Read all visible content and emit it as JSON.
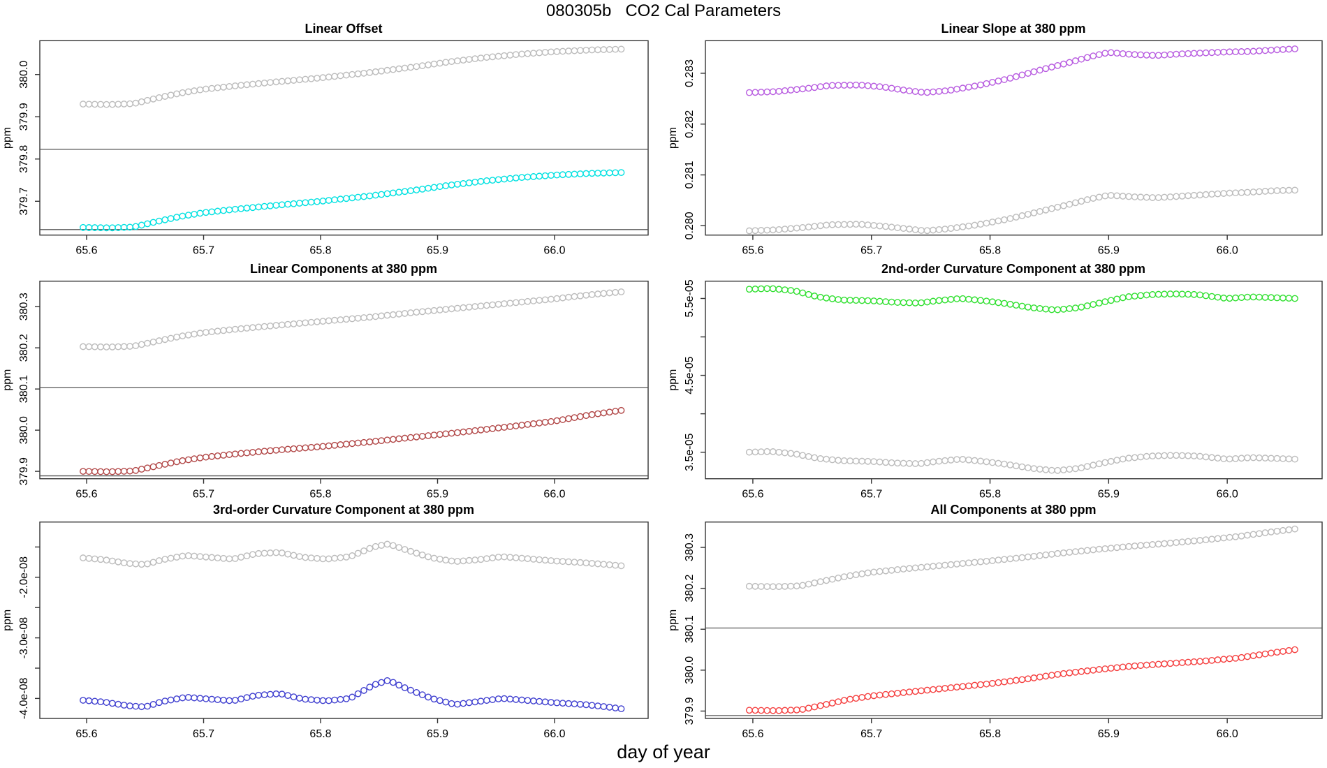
{
  "figure": {
    "title": "080305b   CO2 Cal Parameters",
    "xlabel": "day of year"
  },
  "chart_data": [
    {
      "type": "scatter",
      "title": "Linear Offset",
      "ylabel": "ppm",
      "xlabel": "",
      "xlim": [
        65.56,
        66.08
      ],
      "ylim": [
        379.62,
        380.08
      ],
      "grid": false,
      "legend": "none",
      "xticks": {
        "values": [
          65.6,
          65.7,
          65.8,
          65.9,
          66.0
        ],
        "labels": [
          "65.6",
          "65.7",
          "65.8",
          "65.9",
          "66.0"
        ]
      },
      "yticks": {
        "values": [
          379.7,
          379.8,
          379.9,
          380.0
        ],
        "labels": [
          "379.7",
          "379.8",
          "379.9",
          "380.0"
        ]
      },
      "hlines": [
        379.823,
        379.633
      ],
      "points_x_start": 65.597,
      "points_x_step": 0.005,
      "points_n": 93,
      "series": [
        {
          "name": "offset-upper-gray",
          "color": "#bcbcbc",
          "marker": "open-circle",
          "x": [
            65.597,
            65.62,
            65.64,
            65.66,
            65.68,
            65.7,
            65.73,
            65.76,
            65.8,
            65.84,
            65.88,
            65.91,
            65.94,
            65.97,
            66.0,
            66.03,
            66.057
          ],
          "y": [
            379.93,
            379.929,
            379.931,
            379.944,
            379.956,
            379.965,
            379.974,
            379.982,
            379.992,
            380.004,
            380.018,
            380.03,
            380.04,
            380.048,
            380.054,
            380.058,
            380.06
          ]
        },
        {
          "name": "offset-lower-cyan",
          "color": "#00e1e1",
          "marker": "open-circle",
          "x": [
            65.597,
            65.62,
            65.64,
            65.66,
            65.68,
            65.7,
            65.73,
            65.76,
            65.8,
            65.84,
            65.88,
            65.91,
            65.94,
            65.97,
            66.0,
            66.03,
            66.057
          ],
          "y": [
            379.638,
            379.637,
            379.639,
            379.652,
            379.664,
            379.673,
            379.682,
            379.69,
            379.7,
            379.712,
            379.726,
            379.738,
            379.748,
            379.756,
            379.762,
            379.766,
            379.768
          ]
        }
      ]
    },
    {
      "type": "scatter",
      "title": "Linear Slope at 380 ppm",
      "ylabel": "ppm",
      "xlabel": "",
      "xlim": [
        65.56,
        66.08
      ],
      "ylim": [
        0.279816,
        0.283641
      ],
      "grid": false,
      "legend": "none",
      "xticks": {
        "values": [
          65.6,
          65.7,
          65.8,
          65.9,
          66.0
        ],
        "labels": [
          "65.6",
          "65.7",
          "65.8",
          "65.9",
          "66.0"
        ]
      },
      "yticks": {
        "values": [
          0.28,
          0.281,
          0.282,
          0.283
        ],
        "labels": [
          "0.280",
          "0.281",
          "0.282",
          "0.283"
        ]
      },
      "hlines": [],
      "points_x_start": 65.597,
      "points_x_step": 0.005,
      "points_n": 93,
      "series": [
        {
          "name": "slope-upper-violet",
          "color": "#b85ce0",
          "marker": "open-circle",
          "x": [
            65.597,
            65.62,
            65.645,
            65.665,
            65.69,
            65.71,
            65.73,
            65.745,
            65.765,
            65.79,
            65.815,
            65.84,
            65.865,
            65.885,
            65.9,
            65.92,
            65.94,
            65.96,
            65.98,
            66.0,
            66.02,
            66.04,
            66.057
          ],
          "y": [
            0.28262,
            0.28264,
            0.2827,
            0.28276,
            0.28277,
            0.28273,
            0.28266,
            0.28262,
            0.28266,
            0.28276,
            0.28289,
            0.28305,
            0.2832,
            0.28333,
            0.28341,
            0.28337,
            0.28335,
            0.28338,
            0.2834,
            0.28342,
            0.28343,
            0.28346,
            0.28348
          ]
        },
        {
          "name": "slope-lower-gray",
          "color": "#bcbcbc",
          "marker": "open-circle",
          "x": [
            65.597,
            65.62,
            65.645,
            65.665,
            65.69,
            65.71,
            65.73,
            65.745,
            65.765,
            65.79,
            65.815,
            65.84,
            65.865,
            65.885,
            65.9,
            65.92,
            65.94,
            65.96,
            65.98,
            66.0,
            66.02,
            66.04,
            66.057
          ],
          "y": [
            0.2799,
            0.27992,
            0.27997,
            0.28002,
            0.28003,
            0.27999,
            0.27994,
            0.2799,
            0.27994,
            0.28002,
            0.28013,
            0.28027,
            0.28041,
            0.28053,
            0.2806,
            0.28057,
            0.28055,
            0.28058,
            0.28061,
            0.28064,
            0.28066,
            0.28069,
            0.2807
          ]
        }
      ]
    },
    {
      "type": "scatter",
      "title": "Linear Components at 380 ppm",
      "ylabel": "ppm",
      "xlabel": "",
      "xlim": [
        65.56,
        66.08
      ],
      "ylim": [
        379.882,
        380.362
      ],
      "grid": false,
      "legend": "none",
      "xticks": {
        "values": [
          65.6,
          65.7,
          65.8,
          65.9,
          66.0
        ],
        "labels": [
          "65.6",
          "65.7",
          "65.8",
          "65.9",
          "66.0"
        ]
      },
      "yticks": {
        "values": [
          379.9,
          380.0,
          380.1,
          380.2,
          380.3
        ],
        "labels": [
          "379.9",
          "380.0",
          "380.1",
          "380.2",
          "380.3"
        ]
      },
      "hlines": [
        380.103,
        379.889
      ],
      "points_x_start": 65.597,
      "points_x_step": 0.005,
      "points_n": 93,
      "series": [
        {
          "name": "components-upper-gray",
          "color": "#bcbcbc",
          "marker": "open-circle",
          "x": [
            65.597,
            65.62,
            65.64,
            65.66,
            65.68,
            65.7,
            65.73,
            65.76,
            65.8,
            65.84,
            65.88,
            65.92,
            65.96,
            66.0,
            66.03,
            66.057
          ],
          "y": [
            380.203,
            380.202,
            380.204,
            380.216,
            380.228,
            380.237,
            380.246,
            380.254,
            380.264,
            380.274,
            380.286,
            380.297,
            380.308,
            380.319,
            380.329,
            380.336
          ]
        },
        {
          "name": "components-lower-darkred",
          "color": "#b24848",
          "marker": "open-circle",
          "x": [
            65.597,
            65.62,
            65.64,
            65.66,
            65.68,
            65.7,
            65.73,
            65.76,
            65.8,
            65.84,
            65.88,
            65.92,
            65.96,
            66.0,
            66.03,
            66.057
          ],
          "y": [
            379.9,
            379.899,
            379.901,
            379.913,
            379.925,
            379.934,
            379.943,
            379.951,
            379.96,
            379.971,
            379.983,
            379.995,
            380.008,
            380.022,
            380.037,
            380.048
          ]
        }
      ]
    },
    {
      "type": "scatter",
      "title": "2nd-order Curvature Component at 380 ppm",
      "ylabel": "ppm",
      "xlabel": "",
      "xlim": [
        65.56,
        66.08
      ],
      "ylim": [
        3.155e-05,
        5.725e-05
      ],
      "grid": false,
      "legend": "none",
      "xticks": {
        "values": [
          65.6,
          65.7,
          65.8,
          65.9,
          66.0
        ],
        "labels": [
          "65.6",
          "65.7",
          "65.8",
          "65.9",
          "66.0"
        ]
      },
      "yticks": {
        "values": [
          3.5e-05,
          4e-05,
          4.5e-05,
          5e-05,
          5.5e-05
        ],
        "labels": [
          "3.5e-05",
          "",
          "4.5e-05",
          "",
          "5.5e-05"
        ]
      },
      "hlines": [],
      "points_x_start": 65.597,
      "points_x_step": 0.005,
      "points_n": 93,
      "series": [
        {
          "name": "curv2-upper-green",
          "color": "#30e030",
          "marker": "open-circle",
          "x": [
            65.597,
            65.615,
            65.635,
            65.655,
            65.675,
            65.7,
            65.72,
            65.74,
            65.755,
            65.775,
            65.795,
            65.815,
            65.835,
            65.855,
            65.875,
            65.895,
            65.915,
            65.935,
            65.955,
            65.975,
            66.0,
            66.02,
            66.04,
            66.057
          ],
          "y": [
            5.62e-05,
            5.63e-05,
            5.6e-05,
            5.52e-05,
            5.48e-05,
            5.47e-05,
            5.45e-05,
            5.44e-05,
            5.47e-05,
            5.5e-05,
            5.47e-05,
            5.43e-05,
            5.38e-05,
            5.35e-05,
            5.38e-05,
            5.45e-05,
            5.52e-05,
            5.55e-05,
            5.56e-05,
            5.55e-05,
            5.5e-05,
            5.52e-05,
            5.51e-05,
            5.5e-05
          ]
        },
        {
          "name": "curv2-lower-gray",
          "color": "#bcbcbc",
          "marker": "open-circle",
          "x": [
            65.597,
            65.615,
            65.635,
            65.655,
            65.675,
            65.7,
            65.72,
            65.74,
            65.755,
            65.775,
            65.795,
            65.815,
            65.835,
            65.855,
            65.875,
            65.895,
            65.915,
            65.935,
            65.955,
            65.975,
            66.0,
            66.02,
            66.04,
            66.057
          ],
          "y": [
            3.5e-05,
            3.51e-05,
            3.48e-05,
            3.42e-05,
            3.39e-05,
            3.38e-05,
            3.36e-05,
            3.35e-05,
            3.38e-05,
            3.41e-05,
            3.38e-05,
            3.34e-05,
            3.29e-05,
            3.26e-05,
            3.29e-05,
            3.36e-05,
            3.42e-05,
            3.45e-05,
            3.46e-05,
            3.45e-05,
            3.41e-05,
            3.43e-05,
            3.42e-05,
            3.41e-05
          ]
        }
      ]
    },
    {
      "type": "scatter",
      "title": "3rd-order Curvature Component at 380 ppm",
      "ylabel": "ppm",
      "xlabel": "",
      "xlim": [
        65.56,
        66.08
      ],
      "ylim": [
        -4.33e-08,
        -1.088e-08
      ],
      "grid": false,
      "legend": "none",
      "xticks": {
        "values": [
          65.6,
          65.7,
          65.8,
          65.9,
          66.0
        ],
        "labels": [
          "65.6",
          "65.7",
          "65.8",
          "65.9",
          "66.0"
        ]
      },
      "yticks": {
        "values": [
          -1.5e-08,
          -2e-08,
          -2.5e-08,
          -3e-08,
          -3.5e-08,
          -4e-08
        ],
        "labels": [
          "",
          "-2.0e-08",
          "",
          "-3.0e-08",
          "",
          "-4.0e-08"
        ]
      },
      "hlines": [],
      "points_x_start": 65.597,
      "points_x_step": 0.005,
      "points_n": 93,
      "series": [
        {
          "name": "curv3-upper-gray",
          "color": "#bcbcbc",
          "marker": "open-circle",
          "x": [
            65.597,
            65.615,
            65.635,
            65.65,
            65.665,
            65.685,
            65.705,
            65.725,
            65.745,
            65.765,
            65.785,
            65.805,
            65.825,
            65.845,
            65.858,
            65.875,
            65.895,
            65.915,
            65.935,
            65.955,
            65.975,
            66.0,
            66.025,
            66.045,
            66.057
          ],
          "y": [
            -1.68e-08,
            -1.71e-08,
            -1.77e-08,
            -1.79e-08,
            -1.71e-08,
            -1.64e-08,
            -1.67e-08,
            -1.7e-08,
            -1.61e-08,
            -1.59e-08,
            -1.67e-08,
            -1.7e-08,
            -1.66e-08,
            -1.5e-08,
            -1.45e-08,
            -1.56e-08,
            -1.68e-08,
            -1.74e-08,
            -1.71e-08,
            -1.66e-08,
            -1.69e-08,
            -1.73e-08,
            -1.76e-08,
            -1.79e-08,
            -1.81e-08
          ]
        },
        {
          "name": "curv3-lower-blue",
          "color": "#4040d0",
          "marker": "open-circle",
          "x": [
            65.597,
            65.615,
            65.635,
            65.65,
            65.665,
            65.685,
            65.705,
            65.725,
            65.745,
            65.765,
            65.785,
            65.805,
            65.825,
            65.845,
            65.858,
            65.875,
            65.895,
            65.915,
            65.935,
            65.955,
            65.975,
            66.0,
            66.025,
            66.045,
            66.057
          ],
          "y": [
            -4.03e-08,
            -4.06e-08,
            -4.12e-08,
            -4.14e-08,
            -4.05e-08,
            -3.98e-08,
            -4.01e-08,
            -4.04e-08,
            -3.95e-08,
            -3.92e-08,
            -4.01e-08,
            -4.04e-08,
            -4e-08,
            -3.78e-08,
            -3.7e-08,
            -3.85e-08,
            -4e-08,
            -4.1e-08,
            -4.05e-08,
            -4e-08,
            -4.03e-08,
            -4.07e-08,
            -4.1e-08,
            -4.14e-08,
            -4.17e-08
          ]
        }
      ]
    },
    {
      "type": "scatter",
      "title": "All Components at 380 ppm",
      "ylabel": "ppm",
      "xlabel": "",
      "xlim": [
        65.56,
        66.08
      ],
      "ylim": [
        379.882,
        380.362
      ],
      "grid": false,
      "legend": "none",
      "xticks": {
        "values": [
          65.6,
          65.7,
          65.8,
          65.9,
          66.0
        ],
        "labels": [
          "65.6",
          "65.7",
          "65.8",
          "65.9",
          "66.0"
        ]
      },
      "yticks": {
        "values": [
          379.9,
          380.0,
          380.1,
          380.2,
          380.3
        ],
        "labels": [
          "379.9",
          "380.0",
          "380.1",
          "380.2",
          "380.3"
        ]
      },
      "hlines": [
        380.103,
        379.889
      ],
      "points_x_start": 65.597,
      "points_x_step": 0.005,
      "points_n": 93,
      "series": [
        {
          "name": "all-upper-gray",
          "color": "#bcbcbc",
          "marker": "open-circle",
          "x": [
            65.597,
            65.62,
            65.64,
            65.66,
            65.68,
            65.7,
            65.73,
            65.76,
            65.8,
            65.83,
            65.86,
            65.89,
            65.92,
            65.95,
            65.98,
            66.01,
            66.035,
            66.057
          ],
          "y": [
            380.205,
            380.204,
            380.206,
            380.218,
            380.23,
            380.239,
            380.248,
            380.256,
            380.267,
            380.276,
            380.286,
            380.295,
            380.303,
            380.31,
            380.318,
            380.327,
            380.337,
            380.345
          ]
        },
        {
          "name": "all-lower-red",
          "color": "#f54040",
          "marker": "open-circle",
          "x": [
            65.597,
            65.62,
            65.64,
            65.66,
            65.68,
            65.7,
            65.73,
            65.76,
            65.8,
            65.83,
            65.86,
            65.89,
            65.92,
            65.95,
            65.98,
            66.01,
            66.035,
            66.057
          ],
          "y": [
            379.902,
            379.901,
            379.903,
            379.915,
            379.928,
            379.937,
            379.946,
            379.955,
            379.967,
            379.978,
            379.991,
            380.001,
            380.01,
            380.016,
            380.022,
            380.03,
            380.041,
            380.05
          ]
        }
      ]
    }
  ]
}
